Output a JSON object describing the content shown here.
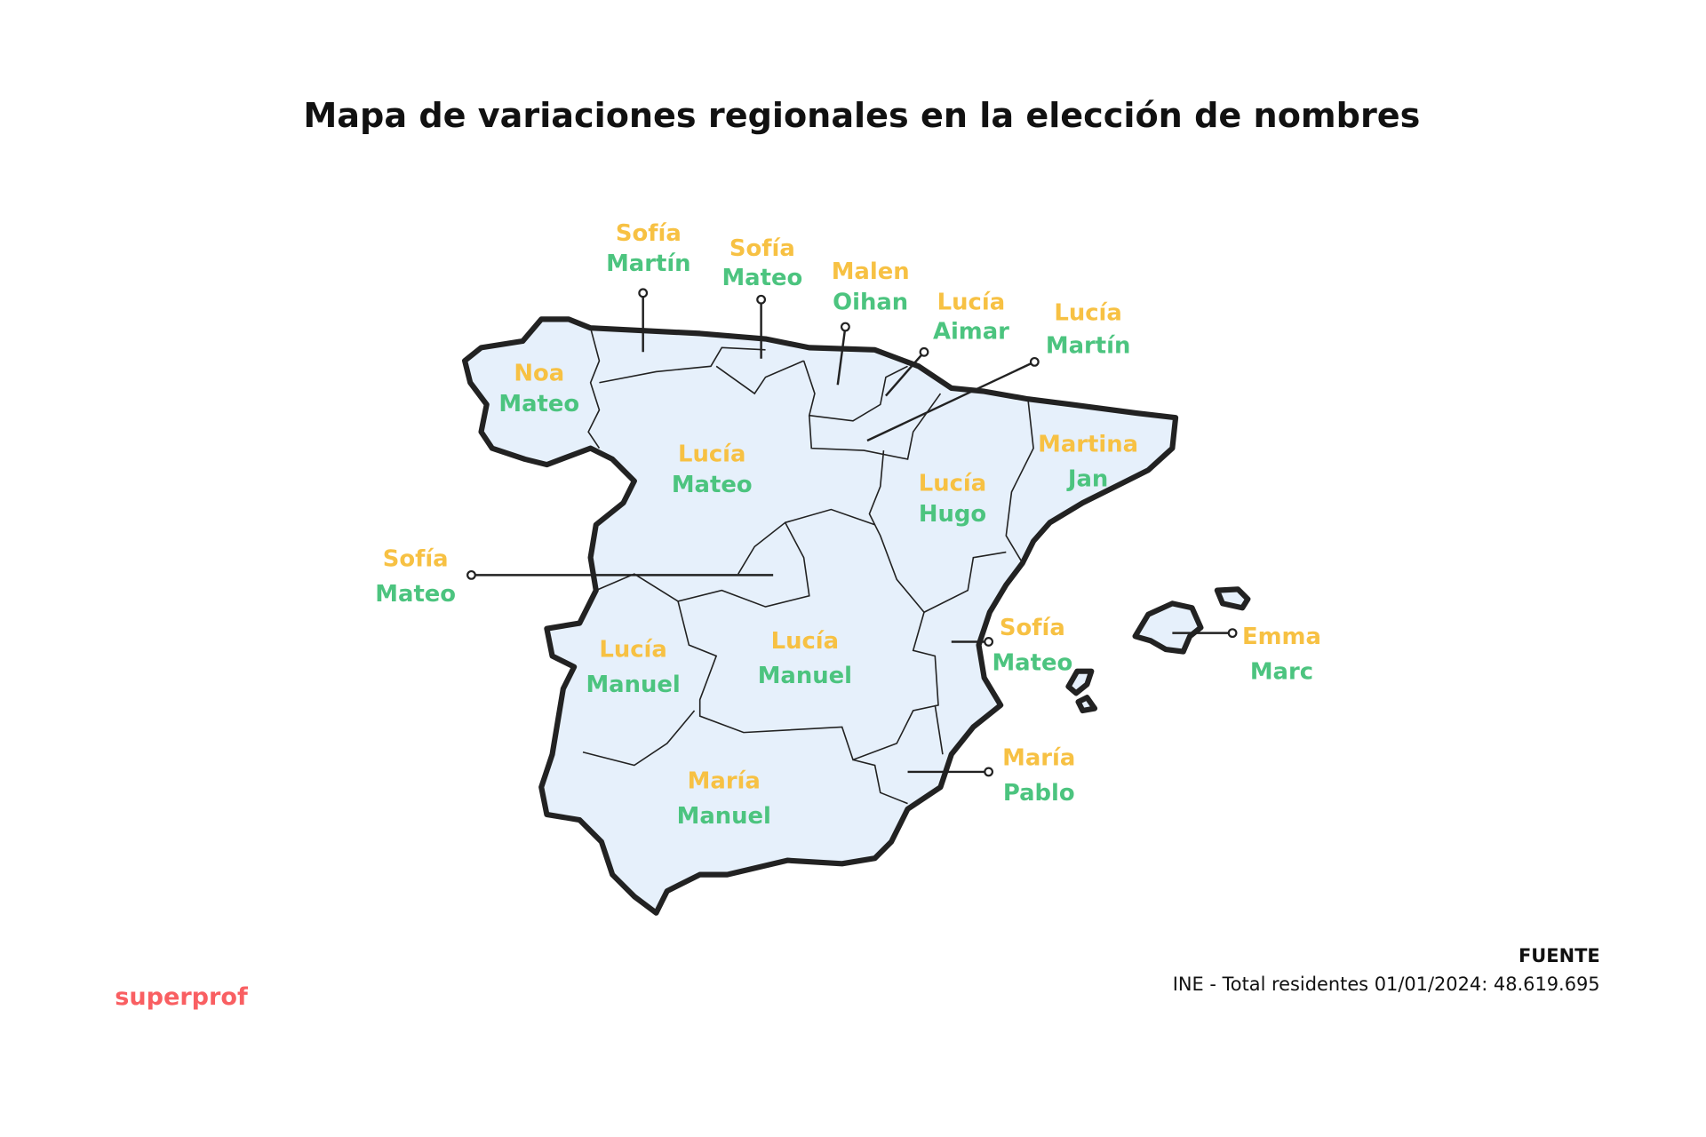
{
  "title": "Mapa de variaciones regionales en la elección de nombres",
  "colors": {
    "female": "#F7C143",
    "male": "#4CC47F",
    "land": "#E6F0FB",
    "outline": "#222222",
    "brand": "#F95F62"
  },
  "regions": [
    {
      "female": "Noa",
      "male": "Mateo"
    },
    {
      "female": "Sofía",
      "male": "Martín"
    },
    {
      "female": "Sofía",
      "male": "Mateo"
    },
    {
      "female": "Malen",
      "male": "Oihan"
    },
    {
      "female": "Lucía",
      "male": "Aimar"
    },
    {
      "female": "Lucía",
      "male": "Martín"
    },
    {
      "female": "Lucía",
      "male": "Mateo"
    },
    {
      "female": "Lucía",
      "male": "Hugo"
    },
    {
      "female": "Martina",
      "male": "Jan"
    },
    {
      "female": "Sofía",
      "male": "Mateo"
    },
    {
      "female": "Lucía",
      "male": "Manuel"
    },
    {
      "female": "Lucía",
      "male": "Manuel"
    },
    {
      "female": "Sofía",
      "male": "Mateo"
    },
    {
      "female": "Emma",
      "male": "Marc"
    },
    {
      "female": "María",
      "male": "Pablo"
    },
    {
      "female": "María",
      "male": "Manuel"
    }
  ],
  "source": {
    "heading": "FUENTE",
    "text": "INE - Total residentes 01/01/2024: 48.619.695"
  },
  "brand": "superprof"
}
